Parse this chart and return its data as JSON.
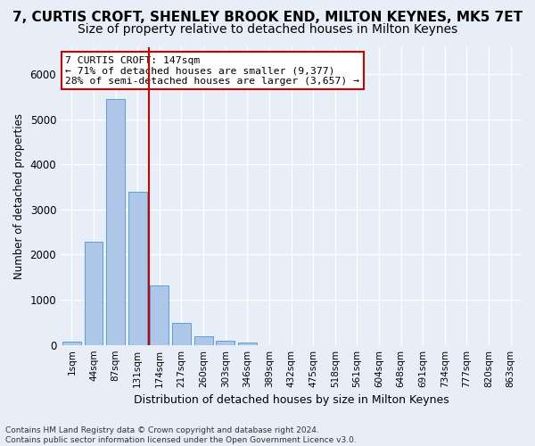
{
  "title": "7, CURTIS CROFT, SHENLEY BROOK END, MILTON KEYNES, MK5 7ET",
  "subtitle": "Size of property relative to detached houses in Milton Keynes",
  "xlabel": "Distribution of detached houses by size in Milton Keynes",
  "ylabel": "Number of detached properties",
  "footer_line1": "Contains HM Land Registry data © Crown copyright and database right 2024.",
  "footer_line2": "Contains public sector information licensed under the Open Government Licence v3.0.",
  "bin_labels": [
    "1sqm",
    "44sqm",
    "87sqm",
    "131sqm",
    "174sqm",
    "217sqm",
    "260sqm",
    "303sqm",
    "346sqm",
    "389sqm",
    "432sqm",
    "475sqm",
    "518sqm",
    "561sqm",
    "604sqm",
    "648sqm",
    "691sqm",
    "734sqm",
    "777sqm",
    "820sqm",
    "863sqm"
  ],
  "bar_values": [
    70,
    2280,
    5450,
    3400,
    1310,
    490,
    190,
    90,
    60,
    0,
    0,
    0,
    0,
    0,
    0,
    0,
    0,
    0,
    0,
    0,
    0
  ],
  "bar_color": "#aec6e8",
  "bar_edge_color": "#5a9fd4",
  "vline_pos": 3.5,
  "vline_color": "#cc0000",
  "annotation_text": "7 CURTIS CROFT: 147sqm\n← 71% of detached houses are smaller (9,377)\n28% of semi-detached houses are larger (3,657) →",
  "annotation_box_color": "#ffffff",
  "annotation_box_edge": "#cc0000",
  "ylim": [
    0,
    6600
  ],
  "background_color": "#e8eef7",
  "plot_bg_color": "#e8eef7",
  "grid_color": "#ffffff",
  "title_fontsize": 11,
  "subtitle_fontsize": 10
}
